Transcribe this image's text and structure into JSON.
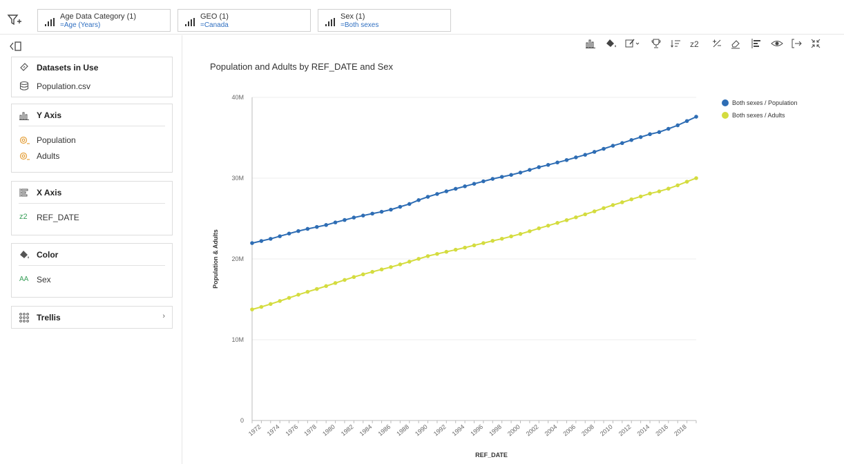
{
  "filters": [
    {
      "title": "Age Data Category (1)",
      "value": "=Age (Years)"
    },
    {
      "title": "GEO (1)",
      "value": "=Canada"
    },
    {
      "title": "Sex (1)",
      "value": "=Both sexes"
    }
  ],
  "left_panel": {
    "datasets": {
      "title": "Datasets in Use",
      "items": [
        "Population.csv"
      ]
    },
    "y_axis": {
      "title": "Y Axis",
      "items": [
        "Population",
        "Adults"
      ]
    },
    "x_axis": {
      "title": "X Axis",
      "items": [
        "REF_DATE"
      ]
    },
    "color": {
      "title": "Color",
      "items": [
        "Sex"
      ]
    },
    "trellis": {
      "title": "Trellis",
      "chevron": "›"
    }
  },
  "colors": {
    "population": "#2e6db4",
    "adults": "#d4dc3f",
    "accent": "#2f6fc1"
  },
  "chart_data": {
    "type": "line",
    "title": "Population and Adults by REF_DATE and Sex",
    "xlabel": "REF_DATE",
    "ylabel": "Population & Adults",
    "ylim": [
      0,
      40000000
    ],
    "y_ticks": [
      "0",
      "10M",
      "20M",
      "30M",
      "40M"
    ],
    "y_tick_values": [
      0,
      10000000,
      20000000,
      30000000,
      40000000
    ],
    "x": [
      1971,
      1972,
      1973,
      1974,
      1975,
      1976,
      1977,
      1978,
      1979,
      1980,
      1981,
      1982,
      1983,
      1984,
      1985,
      1986,
      1987,
      1988,
      1989,
      1990,
      1991,
      1992,
      1993,
      1994,
      1995,
      1996,
      1997,
      1998,
      1999,
      2000,
      2001,
      2002,
      2003,
      2004,
      2005,
      2006,
      2007,
      2008,
      2009,
      2010,
      2011,
      2012,
      2013,
      2014,
      2015,
      2016,
      2017,
      2018,
      2019
    ],
    "x_tick_labels": [
      "1972",
      "1974",
      "1976",
      "1978",
      "1980",
      "1982",
      "1984",
      "1986",
      "1988",
      "1990",
      "1992",
      "1994",
      "1996",
      "1998",
      "2000",
      "2002",
      "2004",
      "2006",
      "2008",
      "2010",
      "2012",
      "2014",
      "2016",
      "2018"
    ],
    "legend_position": "top-right",
    "series": [
      {
        "name": "Both sexes / Population",
        "color": "#2e6db4",
        "values": [
          21960000,
          22220000,
          22490000,
          22810000,
          23140000,
          23450000,
          23720000,
          23960000,
          24200000,
          24520000,
          24820000,
          25120000,
          25370000,
          25610000,
          25840000,
          26100000,
          26450000,
          26800000,
          27280000,
          27690000,
          28040000,
          28370000,
          28680000,
          28990000,
          29300000,
          29610000,
          29910000,
          30160000,
          30400000,
          30690000,
          31020000,
          31360000,
          31640000,
          31940000,
          32240000,
          32570000,
          32890000,
          33250000,
          33630000,
          34010000,
          34340000,
          34720000,
          35080000,
          35440000,
          35700000,
          36110000,
          36540000,
          37070000,
          37600000
        ]
      },
      {
        "name": "Both sexes / Adults",
        "color": "#d4dc3f",
        "values": [
          13750000,
          14060000,
          14420000,
          14790000,
          15180000,
          15570000,
          15930000,
          16280000,
          16640000,
          17020000,
          17400000,
          17760000,
          18090000,
          18400000,
          18700000,
          18990000,
          19320000,
          19660000,
          20010000,
          20350000,
          20620000,
          20880000,
          21140000,
          21400000,
          21680000,
          21960000,
          22240000,
          22500000,
          22790000,
          23090000,
          23430000,
          23790000,
          24120000,
          24460000,
          24800000,
          25150000,
          25520000,
          25890000,
          26290000,
          26670000,
          27010000,
          27380000,
          27730000,
          28090000,
          28360000,
          28700000,
          29110000,
          29560000,
          30000000
        ]
      }
    ]
  }
}
